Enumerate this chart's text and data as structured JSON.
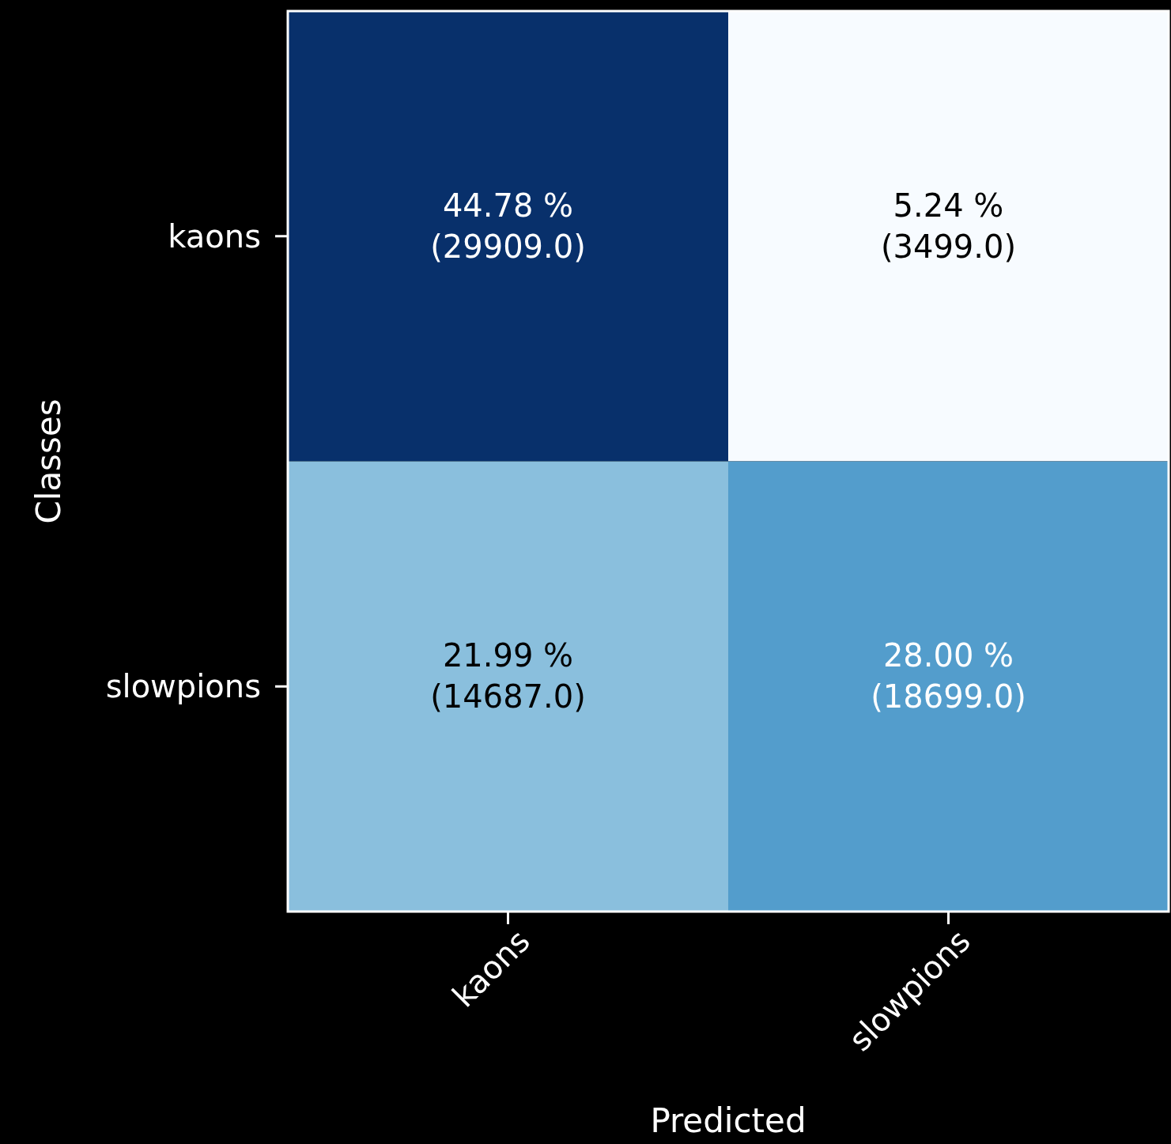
{
  "chart_data": {
    "type": "heatmap",
    "xlabel": "Predicted",
    "ylabel": "Classes",
    "data_labels": true,
    "categories": [
      "kaons",
      "slowpions"
    ],
    "y_categories": [
      "kaons",
      "slowpions"
    ],
    "cells": [
      [
        44.78,
        5.24
      ],
      [
        21.99,
        28.0
      ]
    ],
    "cell_labels": [
      [
        "44.78 %",
        "5.24 %"
      ],
      [
        "21.99 %",
        "28.00 %"
      ]
    ],
    "annotations": [
      "(29909.0)",
      "(3499.0)",
      "(14687.0)",
      "(18699.0)"
    ]
  }
}
